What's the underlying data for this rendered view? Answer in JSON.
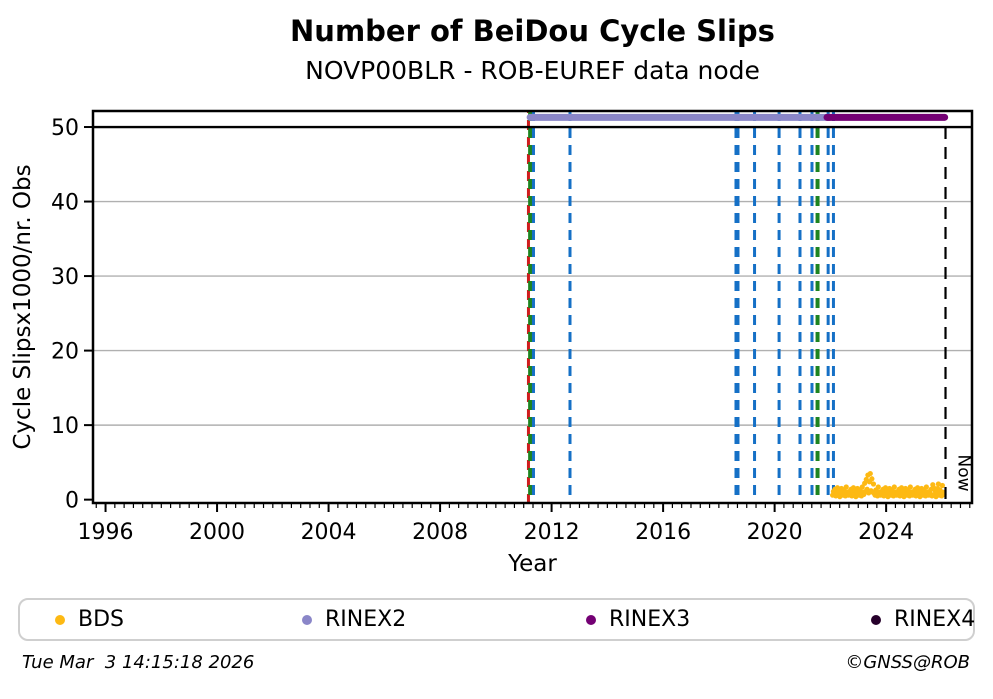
{
  "title": "Number of BeiDou Cycle Slips",
  "subtitle": "NOVP00BLR - ROB-EUREF data node",
  "footer": {
    "timestamp": "Tue Mar  3 14:15:18 2026",
    "credit": "©GNSS@ROB"
  },
  "legend": {
    "items": [
      {
        "label": "BDS",
        "color": "#fdb913"
      },
      {
        "label": "RINEX2",
        "color": "#8a86c8"
      },
      {
        "label": "RINEX3",
        "color": "#740074"
      },
      {
        "label": "RINEX4",
        "color": "#26002b"
      }
    ]
  },
  "chart_data": {
    "type": "scatter",
    "title": "Number of BeiDou Cycle Slips",
    "subtitle": "NOVP00BLR - ROB-EUREF data node",
    "xlabel": "Year",
    "ylabel": "Cycle Slipsx1000/nr. Obs",
    "xlim": [
      1995.55,
      2027.08
    ],
    "ylim": [
      -0.45,
      52.15
    ],
    "x_major_ticks": [
      1996,
      2000,
      2004,
      2008,
      2012,
      2016,
      2020,
      2024
    ],
    "x_minor_step_years": 0.33333,
    "y_ticks": [
      0,
      10,
      20,
      30,
      40,
      50
    ],
    "gridlines": {
      "y_gray": [
        10,
        20,
        30,
        40
      ],
      "y_black": [
        50
      ],
      "gray_color": "#b0b0b0"
    },
    "now_marker": {
      "year": 2026.13,
      "label": "Now",
      "color": "#000000"
    },
    "event_lines": [
      {
        "year": 2011.17,
        "color": "#cf1d1d",
        "width": 3,
        "dash_offset": 8
      },
      {
        "year": 2011.23,
        "color": "#1e8420",
        "width": 4,
        "dash_offset": 0
      },
      {
        "year": 2011.35,
        "color": "#1570c6",
        "width": 3,
        "dash_offset": 0
      },
      {
        "year": 2012.66,
        "color": "#1570c6",
        "width": 3,
        "dash_offset": 0
      },
      {
        "year": 2018.65,
        "color": "#1570c6",
        "width": 5,
        "dash_offset": 0
      },
      {
        "year": 2019.28,
        "color": "#1570c6",
        "width": 3,
        "dash_offset": 0
      },
      {
        "year": 2020.16,
        "color": "#1570c6",
        "width": 3,
        "dash_offset": 0
      },
      {
        "year": 2020.91,
        "color": "#1570c6",
        "width": 3,
        "dash_offset": 0
      },
      {
        "year": 2021.34,
        "color": "#1570c6",
        "width": 3,
        "dash_offset": 0
      },
      {
        "year": 2021.54,
        "color": "#1e8420",
        "width": 4,
        "dash_offset": 0
      },
      {
        "year": 2021.92,
        "color": "#1570c6",
        "width": 3,
        "dash_offset": 0
      },
      {
        "year": 2022.11,
        "color": "#1570c6",
        "width": 3,
        "dash_offset": 0
      }
    ],
    "rinex_segments": [
      {
        "name": "RINEX2",
        "y": 51.3,
        "start": 2011.23,
        "end": 2021.97,
        "color": "#8a86c8"
      },
      {
        "name": "RINEX3",
        "y": 51.3,
        "start": 2021.88,
        "end": 2026.1,
        "color": "#740074"
      }
    ],
    "bds_series": {
      "name": "BDS",
      "color": "#fdb913",
      "x_start": 2022.08,
      "x_step": 0.02875,
      "values": [
        0.6,
        1.1,
        0.8,
        1.4,
        0.5,
        0.9,
        1.6,
        0.7,
        1.2,
        0.4,
        1.0,
        1.5,
        0.8,
        0.6,
        1.3,
        0.9,
        0.5,
        1.7,
        1.0,
        0.7,
        0.6,
        1.1,
        0.8,
        1.4,
        0.5,
        0.9,
        1.6,
        0.7,
        1.2,
        0.4,
        1.0,
        1.5,
        0.8,
        0.6,
        1.3,
        0.9,
        0.5,
        1.7,
        1.0,
        0.7,
        2.2,
        1.1,
        2.7,
        1.4,
        3.3,
        0.9,
        2.4,
        3.5,
        1.2,
        2.8,
        1.0,
        2.1,
        0.8,
        0.6,
        1.3,
        0.9,
        0.5,
        1.7,
        1.0,
        0.7,
        0.6,
        1.1,
        0.8,
        1.4,
        0.5,
        0.9,
        1.6,
        0.7,
        1.2,
        0.4,
        1.0,
        1.5,
        0.8,
        0.6,
        1.3,
        0.9,
        0.5,
        1.7,
        1.0,
        0.7,
        0.6,
        1.1,
        0.8,
        1.4,
        0.5,
        0.9,
        1.6,
        0.7,
        1.2,
        0.4,
        1.0,
        1.5,
        0.8,
        0.6,
        1.3,
        0.9,
        0.5,
        1.7,
        1.0,
        0.7,
        0.6,
        1.1,
        0.8,
        1.4,
        0.5,
        0.9,
        1.6,
        0.7,
        1.2,
        0.4,
        1.0,
        1.5,
        0.8,
        0.6,
        1.3,
        0.9,
        0.5,
        1.7,
        1.0,
        0.7,
        0.6,
        1.1,
        0.8,
        1.4,
        0.5,
        2.0,
        1.6,
        0.7,
        1.2,
        0.4,
        1.0,
        1.5,
        2.1,
        0.6,
        1.3,
        0.9,
        0.5,
        1.9,
        1.0,
        0.7
      ]
    }
  }
}
